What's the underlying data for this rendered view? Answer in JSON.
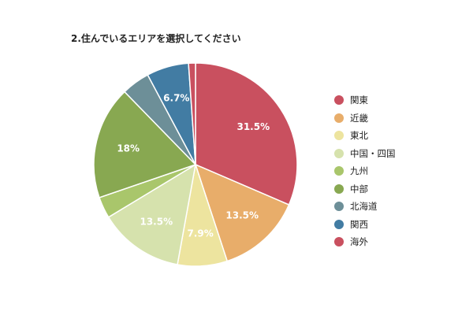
{
  "chart_data": {
    "type": "pie",
    "title": "2.住んでいるエリアを選択してください",
    "legend_position": "right",
    "categories": [
      "関東",
      "近畿",
      "東北",
      "中国・四国",
      "九州",
      "中部",
      "北海道",
      "関西",
      "海外"
    ],
    "values": [
      31.5,
      13.5,
      7.9,
      13.5,
      3.4,
      18,
      4.5,
      6.7,
      1.1
    ],
    "data_labels": [
      "31.5%",
      "13.5%",
      "7.9%",
      "13.5%",
      "",
      "18%",
      "",
      "6.7%",
      ""
    ],
    "colors": [
      "#c9505f",
      "#e8ad6a",
      "#ede49f",
      "#d6e2ad",
      "#a9c66b",
      "#88a851",
      "#6d8f98",
      "#427ca3",
      "#c9505f"
    ]
  }
}
